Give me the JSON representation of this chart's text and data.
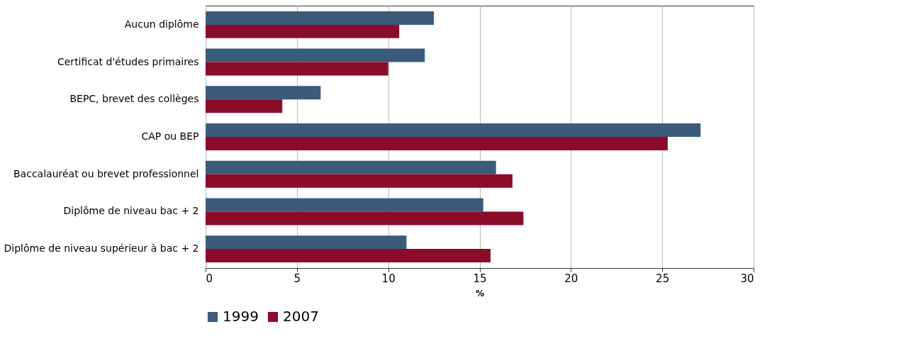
{
  "chart_data": {
    "type": "bar",
    "orientation": "horizontal",
    "xlabel": "%",
    "categories": [
      "Aucun diplôme",
      "Certificat d'études primaires",
      "BEPC, brevet des collèges",
      "CAP ou BEP",
      "Baccalauréat ou brevet professionnel",
      "Diplôme de niveau bac + 2",
      "Diplôme de niveau supérieur à bac + 2"
    ],
    "series": [
      {
        "name": "1999",
        "color": "#3b5b7b",
        "values": [
          12.5,
          12.0,
          6.3,
          27.1,
          15.9,
          15.2,
          11.0
        ]
      },
      {
        "name": "2007",
        "color": "#8b0b2b",
        "values": [
          10.6,
          10.0,
          4.2,
          25.3,
          16.8,
          17.4,
          15.6
        ]
      }
    ],
    "xlim": [
      0,
      30
    ],
    "xticks": [
      0,
      5,
      10,
      15,
      20,
      25,
      30
    ],
    "grid": "x",
    "legend": "bottom"
  }
}
